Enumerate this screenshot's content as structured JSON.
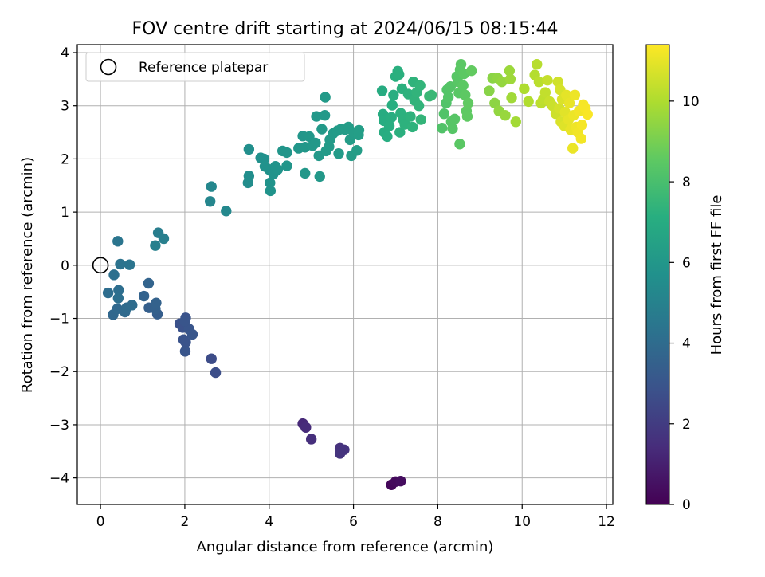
{
  "chart_data": {
    "type": "scatter",
    "title": "FOV centre drift starting at 2024/06/15 08:15:44",
    "xlabel": "Angular distance from reference (arcmin)",
    "ylabel": "Rotation from reference (arcmin)",
    "colorbar_label": "Hours from first FF file",
    "colormap": "viridis",
    "xlim": [
      -0.55,
      12.15
    ],
    "ylim": [
      -4.5,
      4.15
    ],
    "clim": [
      0,
      11.4
    ],
    "x_ticks": [
      0,
      2,
      4,
      6,
      8,
      10,
      12
    ],
    "x_tick_labels": [
      "0",
      "2",
      "4",
      "6",
      "8",
      "10",
      "12"
    ],
    "y_ticks": [
      -4,
      -3,
      -2,
      -1,
      0,
      1,
      2,
      3,
      4
    ],
    "y_tick_labels": [
      "−4",
      "−3",
      "−2",
      "−1",
      "0",
      "1",
      "2",
      "3",
      "4"
    ],
    "colorbar_ticks": [
      0,
      2,
      4,
      6,
      8,
      10
    ],
    "colorbar_tick_labels": [
      "0",
      "2",
      "4",
      "6",
      "8",
      "10"
    ],
    "grid": true,
    "legend": {
      "position": "top-left",
      "label": "Reference platepar",
      "marker": "hollow-circle"
    },
    "reference_point": {
      "x": 0,
      "y": 0
    },
    "points": [
      {
        "x": 6.9,
        "y": -4.13,
        "h": 0.2
      },
      {
        "x": 7.0,
        "y": -4.07,
        "h": 0.3
      },
      {
        "x": 7.12,
        "y": -4.06,
        "h": 0.4
      },
      {
        "x": 4.8,
        "y": -2.98,
        "h": 1.3
      },
      {
        "x": 4.87,
        "y": -3.05,
        "h": 1.4
      },
      {
        "x": 5.0,
        "y": -3.27,
        "h": 1.5
      },
      {
        "x": 5.68,
        "y": -3.44,
        "h": 1.6
      },
      {
        "x": 5.78,
        "y": -3.47,
        "h": 1.65
      },
      {
        "x": 5.68,
        "y": -3.54,
        "h": 1.7
      },
      {
        "x": 2.63,
        "y": -1.76,
        "h": 2.6
      },
      {
        "x": 2.73,
        "y": -2.02,
        "h": 2.7
      },
      {
        "x": 1.88,
        "y": -1.1,
        "h": 2.8
      },
      {
        "x": 1.95,
        "y": -1.17,
        "h": 2.85
      },
      {
        "x": 2.02,
        "y": -0.99,
        "h": 2.9
      },
      {
        "x": 1.97,
        "y": -1.4,
        "h": 2.9
      },
      {
        "x": 2.02,
        "y": -1.45,
        "h": 2.95
      },
      {
        "x": 2.01,
        "y": -1.62,
        "h": 3.0
      },
      {
        "x": 2.1,
        "y": -1.2,
        "h": 3.0
      },
      {
        "x": 2.18,
        "y": -1.3,
        "h": 3.05
      },
      {
        "x": 2.0,
        "y": -1.05,
        "h": 3.0
      },
      {
        "x": 1.35,
        "y": -0.92,
        "h": 3.4
      },
      {
        "x": 1.15,
        "y": -0.8,
        "h": 3.45
      },
      {
        "x": 1.3,
        "y": -0.82,
        "h": 3.5
      },
      {
        "x": 1.32,
        "y": -0.71,
        "h": 3.55
      },
      {
        "x": 1.03,
        "y": -0.58,
        "h": 3.6
      },
      {
        "x": 1.14,
        "y": -0.34,
        "h": 3.65
      },
      {
        "x": 0.3,
        "y": -0.93,
        "h": 3.8
      },
      {
        "x": 0.4,
        "y": -0.82,
        "h": 3.85
      },
      {
        "x": 0.58,
        "y": -0.88,
        "h": 3.9
      },
      {
        "x": 0.62,
        "y": -0.8,
        "h": 3.95
      },
      {
        "x": 0.75,
        "y": -0.75,
        "h": 4.0
      },
      {
        "x": 0.18,
        "y": -0.52,
        "h": 4.05
      },
      {
        "x": 0.43,
        "y": -0.47,
        "h": 4.1
      },
      {
        "x": 0.42,
        "y": -0.62,
        "h": 4.15
      },
      {
        "x": 0.32,
        "y": -0.18,
        "h": 4.2
      },
      {
        "x": 0.47,
        "y": 0.02,
        "h": 4.3
      },
      {
        "x": 0.69,
        "y": 0.01,
        "h": 4.35
      },
      {
        "x": 0.41,
        "y": 0.45,
        "h": 4.4
      },
      {
        "x": 1.37,
        "y": 0.61,
        "h": 4.8
      },
      {
        "x": 1.5,
        "y": 0.5,
        "h": 4.85
      },
      {
        "x": 1.3,
        "y": 0.37,
        "h": 4.9
      },
      {
        "x": 2.6,
        "y": 1.2,
        "h": 5.2
      },
      {
        "x": 2.63,
        "y": 1.48,
        "h": 5.25
      },
      {
        "x": 2.98,
        "y": 1.02,
        "h": 5.3
      },
      {
        "x": 3.5,
        "y": 1.55,
        "h": 5.5
      },
      {
        "x": 3.52,
        "y": 1.68,
        "h": 5.55
      },
      {
        "x": 3.52,
        "y": 2.18,
        "h": 5.6
      },
      {
        "x": 3.8,
        "y": 2.02,
        "h": 5.7
      },
      {
        "x": 3.88,
        "y": 2.0,
        "h": 5.72
      },
      {
        "x": 3.9,
        "y": 1.86,
        "h": 5.74
      },
      {
        "x": 4.0,
        "y": 1.8,
        "h": 5.76
      },
      {
        "x": 4.02,
        "y": 1.55,
        "h": 5.78
      },
      {
        "x": 4.03,
        "y": 1.4,
        "h": 5.8
      },
      {
        "x": 4.1,
        "y": 1.72,
        "h": 5.82
      },
      {
        "x": 4.15,
        "y": 1.86,
        "h": 5.84
      },
      {
        "x": 4.2,
        "y": 1.8,
        "h": 5.86
      },
      {
        "x": 4.32,
        "y": 2.15,
        "h": 5.88
      },
      {
        "x": 4.42,
        "y": 2.12,
        "h": 5.9
      },
      {
        "x": 4.42,
        "y": 1.87,
        "h": 5.92
      },
      {
        "x": 4.7,
        "y": 2.2,
        "h": 5.95
      },
      {
        "x": 4.8,
        "y": 2.43,
        "h": 5.97
      },
      {
        "x": 4.85,
        "y": 2.22,
        "h": 6.0
      },
      {
        "x": 4.95,
        "y": 2.42,
        "h": 6.0
      },
      {
        "x": 5.03,
        "y": 2.25,
        "h": 6.02
      },
      {
        "x": 5.1,
        "y": 2.3,
        "h": 6.04
      },
      {
        "x": 5.12,
        "y": 2.8,
        "h": 6.05
      },
      {
        "x": 5.18,
        "y": 2.06,
        "h": 6.07
      },
      {
        "x": 5.25,
        "y": 2.56,
        "h": 6.08
      },
      {
        "x": 5.32,
        "y": 2.82,
        "h": 6.1
      },
      {
        "x": 5.33,
        "y": 3.16,
        "h": 6.12
      },
      {
        "x": 5.35,
        "y": 2.15,
        "h": 6.12
      },
      {
        "x": 5.42,
        "y": 2.23,
        "h": 6.14
      },
      {
        "x": 5.44,
        "y": 2.36,
        "h": 6.15
      },
      {
        "x": 5.52,
        "y": 2.48,
        "h": 6.16
      },
      {
        "x": 5.62,
        "y": 2.53,
        "h": 6.18
      },
      {
        "x": 5.7,
        "y": 2.56,
        "h": 6.2
      },
      {
        "x": 5.65,
        "y": 2.1,
        "h": 6.2
      },
      {
        "x": 5.8,
        "y": 2.55,
        "h": 6.22
      },
      {
        "x": 5.88,
        "y": 2.6,
        "h": 6.24
      },
      {
        "x": 5.92,
        "y": 2.36,
        "h": 6.25
      },
      {
        "x": 5.95,
        "y": 2.06,
        "h": 6.26
      },
      {
        "x": 6.0,
        "y": 2.5,
        "h": 6.28
      },
      {
        "x": 6.08,
        "y": 2.16,
        "h": 6.3
      },
      {
        "x": 6.12,
        "y": 2.45,
        "h": 6.32
      },
      {
        "x": 6.13,
        "y": 2.54,
        "h": 6.33
      },
      {
        "x": 4.85,
        "y": 1.73,
        "h": 6.0
      },
      {
        "x": 5.2,
        "y": 1.67,
        "h": 6.06
      },
      {
        "x": 6.7,
        "y": 2.84,
        "h": 7.0
      },
      {
        "x": 6.72,
        "y": 2.72,
        "h": 7.02
      },
      {
        "x": 6.73,
        "y": 2.5,
        "h": 7.04
      },
      {
        "x": 6.8,
        "y": 2.42,
        "h": 7.06
      },
      {
        "x": 6.85,
        "y": 2.62,
        "h": 7.08
      },
      {
        "x": 6.9,
        "y": 2.78,
        "h": 7.1
      },
      {
        "x": 6.92,
        "y": 3.01,
        "h": 7.12
      },
      {
        "x": 6.95,
        "y": 3.2,
        "h": 7.14
      },
      {
        "x": 7.0,
        "y": 3.55,
        "h": 7.16
      },
      {
        "x": 7.05,
        "y": 3.65,
        "h": 7.18
      },
      {
        "x": 7.08,
        "y": 3.59,
        "h": 7.2
      },
      {
        "x": 7.1,
        "y": 2.5,
        "h": 7.2
      },
      {
        "x": 7.12,
        "y": 2.86,
        "h": 7.22
      },
      {
        "x": 7.15,
        "y": 3.32,
        "h": 7.24
      },
      {
        "x": 7.18,
        "y": 2.74,
        "h": 7.25
      },
      {
        "x": 7.22,
        "y": 2.65,
        "h": 7.26
      },
      {
        "x": 7.3,
        "y": 3.22,
        "h": 7.28
      },
      {
        "x": 7.35,
        "y": 2.8,
        "h": 7.3
      },
      {
        "x": 7.4,
        "y": 2.6,
        "h": 7.32
      },
      {
        "x": 7.42,
        "y": 3.45,
        "h": 7.34
      },
      {
        "x": 7.45,
        "y": 3.1,
        "h": 7.36
      },
      {
        "x": 7.5,
        "y": 3.25,
        "h": 7.38
      },
      {
        "x": 7.55,
        "y": 3.0,
        "h": 7.4
      },
      {
        "x": 7.58,
        "y": 3.38,
        "h": 7.42
      },
      {
        "x": 7.6,
        "y": 2.74,
        "h": 7.44
      },
      {
        "x": 6.68,
        "y": 3.28,
        "h": 7.0
      },
      {
        "x": 7.8,
        "y": 3.18,
        "h": 7.6
      },
      {
        "x": 7.85,
        "y": 3.2,
        "h": 7.62
      },
      {
        "x": 8.1,
        "y": 2.58,
        "h": 8.2
      },
      {
        "x": 8.15,
        "y": 2.85,
        "h": 8.22
      },
      {
        "x": 8.2,
        "y": 3.05,
        "h": 8.24
      },
      {
        "x": 8.22,
        "y": 3.3,
        "h": 8.26
      },
      {
        "x": 8.25,
        "y": 3.16,
        "h": 8.28
      },
      {
        "x": 8.3,
        "y": 3.36,
        "h": 8.3
      },
      {
        "x": 8.32,
        "y": 2.7,
        "h": 8.32
      },
      {
        "x": 8.35,
        "y": 2.57,
        "h": 8.34
      },
      {
        "x": 8.4,
        "y": 2.75,
        "h": 8.36
      },
      {
        "x": 8.45,
        "y": 3.55,
        "h": 8.38
      },
      {
        "x": 8.48,
        "y": 3.45,
        "h": 8.4
      },
      {
        "x": 8.5,
        "y": 3.24,
        "h": 8.42
      },
      {
        "x": 8.53,
        "y": 3.68,
        "h": 8.44
      },
      {
        "x": 8.55,
        "y": 3.78,
        "h": 8.46
      },
      {
        "x": 8.6,
        "y": 3.38,
        "h": 8.48
      },
      {
        "x": 8.62,
        "y": 3.6,
        "h": 8.5
      },
      {
        "x": 8.65,
        "y": 3.2,
        "h": 8.52
      },
      {
        "x": 8.68,
        "y": 2.9,
        "h": 8.54
      },
      {
        "x": 8.7,
        "y": 2.8,
        "h": 8.56
      },
      {
        "x": 8.72,
        "y": 3.05,
        "h": 8.58
      },
      {
        "x": 8.52,
        "y": 2.28,
        "h": 8.45
      },
      {
        "x": 8.8,
        "y": 3.66,
        "h": 8.62
      },
      {
        "x": 9.22,
        "y": 3.28,
        "h": 9.3
      },
      {
        "x": 9.3,
        "y": 3.52,
        "h": 9.35
      },
      {
        "x": 9.35,
        "y": 3.05,
        "h": 9.4
      },
      {
        "x": 9.42,
        "y": 3.52,
        "h": 9.45
      },
      {
        "x": 9.45,
        "y": 2.9,
        "h": 9.5
      },
      {
        "x": 9.52,
        "y": 3.45,
        "h": 9.55
      },
      {
        "x": 9.6,
        "y": 2.82,
        "h": 9.6
      },
      {
        "x": 9.7,
        "y": 3.66,
        "h": 9.65
      },
      {
        "x": 9.72,
        "y": 3.5,
        "h": 9.7
      },
      {
        "x": 9.75,
        "y": 3.15,
        "h": 9.75
      },
      {
        "x": 9.85,
        "y": 2.7,
        "h": 9.8
      },
      {
        "x": 10.05,
        "y": 3.32,
        "h": 10.0
      },
      {
        "x": 10.15,
        "y": 3.08,
        "h": 10.05
      },
      {
        "x": 10.3,
        "y": 3.58,
        "h": 10.1
      },
      {
        "x": 10.35,
        "y": 3.78,
        "h": 10.15
      },
      {
        "x": 10.4,
        "y": 3.45,
        "h": 10.2
      },
      {
        "x": 10.45,
        "y": 3.05,
        "h": 10.25
      },
      {
        "x": 10.5,
        "y": 3.12,
        "h": 10.3
      },
      {
        "x": 10.55,
        "y": 3.25,
        "h": 10.35
      },
      {
        "x": 10.6,
        "y": 3.48,
        "h": 10.4
      },
      {
        "x": 10.65,
        "y": 3.08,
        "h": 10.45
      },
      {
        "x": 10.72,
        "y": 3.0,
        "h": 10.5
      },
      {
        "x": 10.8,
        "y": 2.85,
        "h": 10.55
      },
      {
        "x": 10.85,
        "y": 3.45,
        "h": 10.6
      },
      {
        "x": 10.88,
        "y": 2.95,
        "h": 10.65
      },
      {
        "x": 10.9,
        "y": 3.3,
        "h": 10.7
      },
      {
        "x": 10.92,
        "y": 2.7,
        "h": 10.75
      },
      {
        "x": 10.95,
        "y": 3.12,
        "h": 10.8
      },
      {
        "x": 11.0,
        "y": 2.62,
        "h": 10.85
      },
      {
        "x": 11.02,
        "y": 2.88,
        "h": 10.9
      },
      {
        "x": 11.05,
        "y": 3.2,
        "h": 10.95
      },
      {
        "x": 11.1,
        "y": 2.74,
        "h": 11.0
      },
      {
        "x": 11.12,
        "y": 3.05,
        "h": 11.02
      },
      {
        "x": 11.15,
        "y": 2.55,
        "h": 11.05
      },
      {
        "x": 11.2,
        "y": 2.2,
        "h": 11.08
      },
      {
        "x": 11.22,
        "y": 2.82,
        "h": 11.1
      },
      {
        "x": 11.25,
        "y": 3.2,
        "h": 11.12
      },
      {
        "x": 11.28,
        "y": 2.6,
        "h": 11.15
      },
      {
        "x": 11.32,
        "y": 2.5,
        "h": 11.18
      },
      {
        "x": 11.35,
        "y": 2.9,
        "h": 11.2
      },
      {
        "x": 11.4,
        "y": 2.38,
        "h": 11.22
      },
      {
        "x": 11.42,
        "y": 2.64,
        "h": 11.25
      },
      {
        "x": 11.45,
        "y": 3.02,
        "h": 11.28
      },
      {
        "x": 11.5,
        "y": 2.95,
        "h": 11.3
      },
      {
        "x": 11.55,
        "y": 2.84,
        "h": 11.32
      }
    ]
  }
}
